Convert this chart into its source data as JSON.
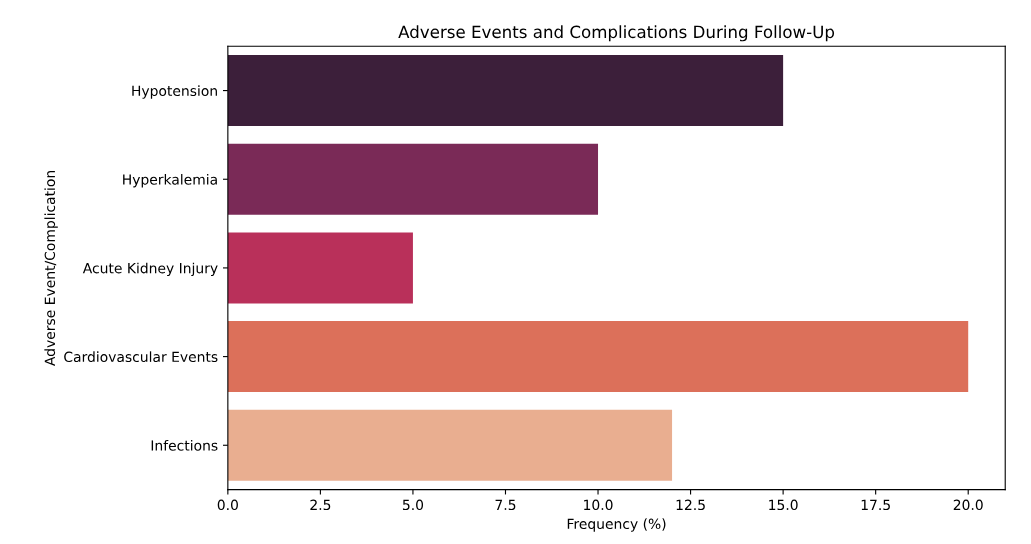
{
  "chart_data": {
    "type": "bar",
    "orientation": "horizontal",
    "title": "Adverse Events and Complications During Follow-Up",
    "xlabel": "Frequency (%)",
    "ylabel": "Adverse Event/Complication",
    "categories": [
      "Hypotension",
      "Hyperkalemia",
      "Acute Kidney Injury",
      "Cardiovascular Events",
      "Infections"
    ],
    "values": [
      15,
      10,
      5,
      20,
      12
    ],
    "colors": [
      "#3c1f3a",
      "#7a2a57",
      "#b9305a",
      "#dc705a",
      "#e9ae90"
    ],
    "xlim": [
      0,
      21
    ],
    "xticks": [
      {
        "value": 0,
        "label": "0.0"
      },
      {
        "value": 2.5,
        "label": "2.5"
      },
      {
        "value": 5,
        "label": "5.0"
      },
      {
        "value": 7.5,
        "label": "7.5"
      },
      {
        "value": 10,
        "label": "10.0"
      },
      {
        "value": 12.5,
        "label": "12.5"
      },
      {
        "value": 15,
        "label": "15.0"
      },
      {
        "value": 17.5,
        "label": "17.5"
      },
      {
        "value": 20,
        "label": "20.0"
      }
    ],
    "grid": false,
    "legend": false
  }
}
